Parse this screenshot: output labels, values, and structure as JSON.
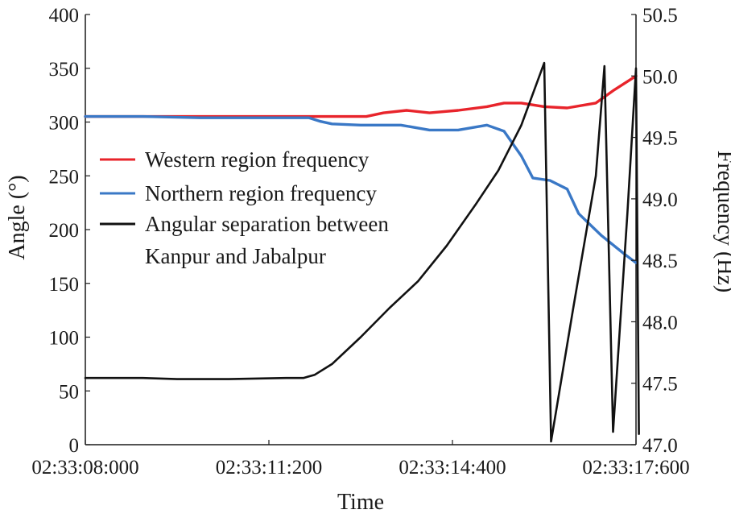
{
  "chart_data": {
    "type": "line",
    "xlabel": "Time",
    "ylabel_left": "Angle (°)",
    "ylabel_right": "Frequency (Hz)",
    "x_unit": "seconds after 02:33:08:000",
    "xlim": [
      0,
      9.6
    ],
    "ylim_left": [
      0,
      400
    ],
    "ylim_right": [
      47.0,
      50.5
    ],
    "x_ticks": [
      {
        "value": 0,
        "label": "02:33:08:000"
      },
      {
        "value": 3.2,
        "label": "02:33:11:200"
      },
      {
        "value": 6.4,
        "label": "02:33:14:400"
      },
      {
        "value": 9.6,
        "label": "02:33:17:600"
      }
    ],
    "y_ticks_left": [
      "0",
      "50",
      "100",
      "150",
      "200",
      "250",
      "300",
      "350",
      "400"
    ],
    "y_ticks_right": [
      "47.0",
      "47.5",
      "48.0",
      "48.5",
      "49.0",
      "49.5",
      "50.0",
      "50.5"
    ],
    "grid": false,
    "legend_position": "center-left",
    "legend": [
      {
        "lines": [
          "Western region frequency"
        ],
        "color": "#e8242b"
      },
      {
        "lines": [
          "Northern region frequency"
        ],
        "color": "#3a78c6"
      },
      {
        "lines": [
          "Angular separation between",
          "Kanpur and Jabalpur"
        ],
        "color": "#111111"
      }
    ],
    "series": [
      {
        "name": "Western region frequency",
        "axis": "right",
        "color": "#e8242b",
        "x": [
          0,
          1,
          2,
          3,
          4,
          4.4,
          4.9,
          5.2,
          5.6,
          6.0,
          6.5,
          7.0,
          7.3,
          7.6,
          8.0,
          8.4,
          8.9,
          9.2,
          9.6
        ],
        "y": [
          49.67,
          49.67,
          49.67,
          49.67,
          49.67,
          49.67,
          49.67,
          49.7,
          49.72,
          49.7,
          49.72,
          49.75,
          49.78,
          49.78,
          49.75,
          49.74,
          49.78,
          49.88,
          50.0
        ]
      },
      {
        "name": "Northern region frequency",
        "axis": "right",
        "color": "#3a78c6",
        "x": [
          0,
          1,
          2,
          3,
          3.9,
          4.1,
          4.3,
          4.8,
          5.5,
          6.0,
          6.5,
          7.0,
          7.3,
          7.6,
          7.8,
          8.1,
          8.4,
          8.6,
          9.0,
          9.4,
          9.6
        ],
        "y": [
          49.67,
          49.67,
          49.66,
          49.66,
          49.66,
          49.63,
          49.61,
          49.6,
          49.6,
          49.56,
          49.56,
          49.6,
          49.55,
          49.35,
          49.17,
          49.15,
          49.08,
          48.88,
          48.7,
          48.55,
          48.48
        ]
      },
      {
        "name": "Angular separation between Kanpur and Jabalpur",
        "axis": "left",
        "color": "#111111",
        "x": [
          0,
          1,
          1.6,
          2.5,
          3.5,
          3.8,
          4.0,
          4.3,
          4.8,
          5.3,
          5.8,
          6.3,
          6.8,
          7.2,
          7.6,
          8.0,
          8.12,
          8.5,
          8.9,
          9.05,
          9.2,
          9.45,
          9.6,
          9.65
        ],
        "y": [
          62,
          62,
          61,
          61,
          62,
          62,
          65,
          75,
          100,
          127,
          152,
          185,
          223,
          255,
          297,
          355,
          3,
          125,
          250,
          352,
          12,
          215,
          350,
          10
        ]
      }
    ]
  }
}
